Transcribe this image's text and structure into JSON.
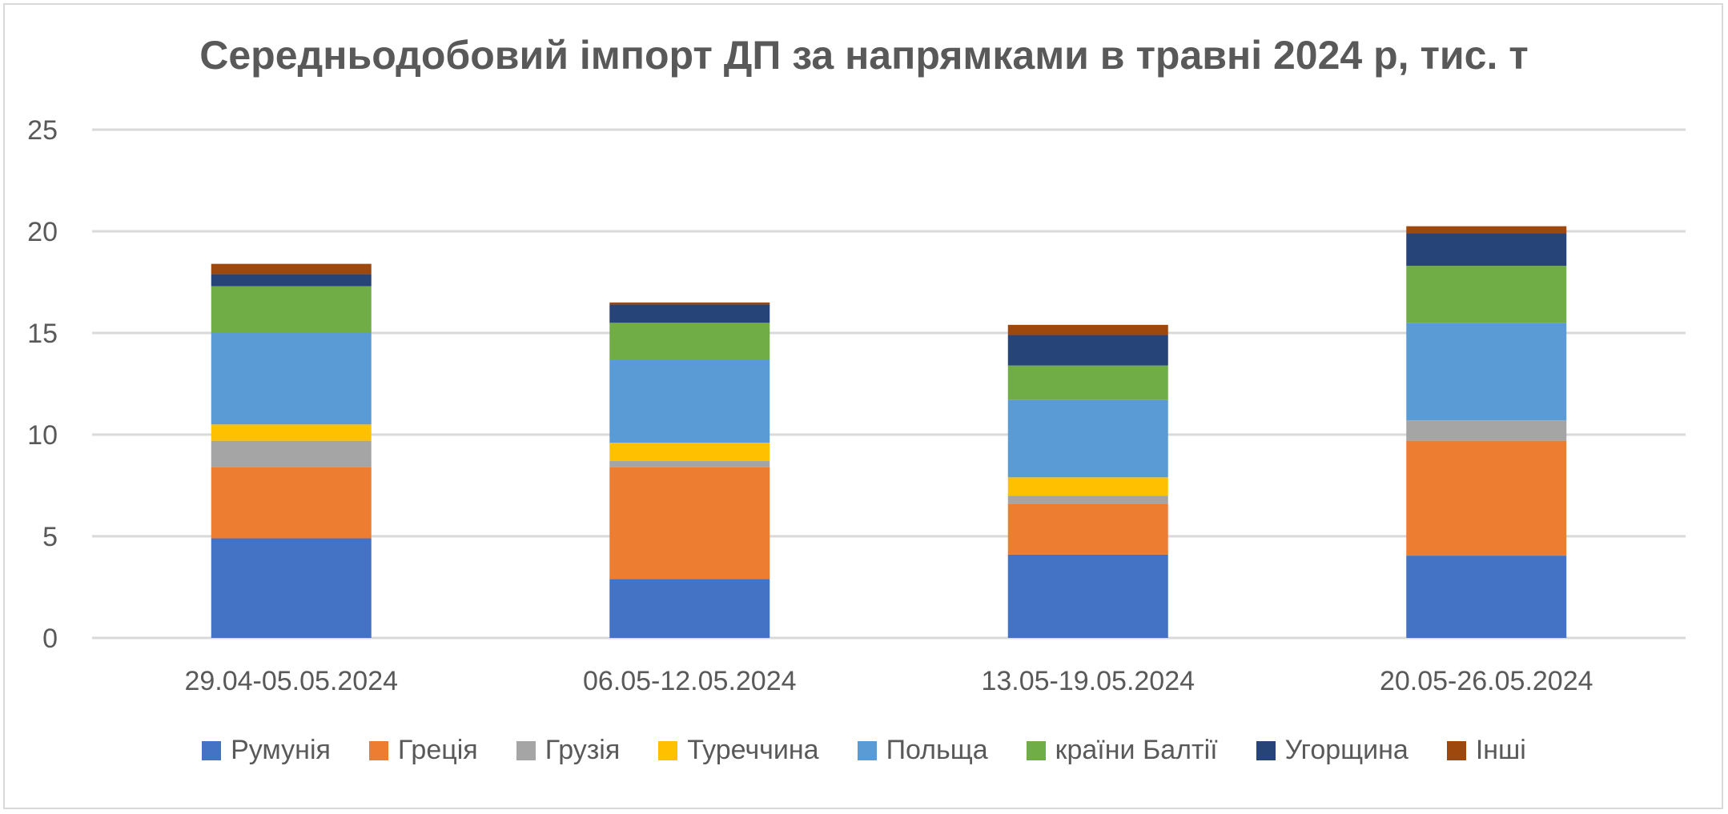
{
  "chart_data": {
    "type": "bar",
    "stacked": true,
    "title": "Середньодобовий імпорт ДП за напрямками в травні 2024 р, тис. т",
    "categories": [
      "29.04-05.05.2024",
      "06.05-12.05.2024",
      "13.05-19.05.2024",
      "20.05-26.05.2024"
    ],
    "ylim": [
      0,
      25
    ],
    "yticks": [
      "0",
      "5",
      "10",
      "15",
      "20",
      "25"
    ],
    "ytick_values": [
      0,
      5,
      10,
      15,
      20,
      25
    ],
    "grid": true,
    "legend_position": "bottom",
    "series": [
      {
        "name": "Румунія",
        "color": "#4472C4",
        "values": [
          4.9,
          2.9,
          4.1,
          4.05
        ]
      },
      {
        "name": "Греція",
        "color": "#ED7D31",
        "values": [
          3.5,
          5.5,
          2.5,
          5.65
        ]
      },
      {
        "name": "Грузія",
        "color": "#A5A5A5",
        "values": [
          1.3,
          0.3,
          0.4,
          1.0
        ]
      },
      {
        "name": "Туреччина",
        "color": "#FFC000",
        "values": [
          0.8,
          0.9,
          0.9,
          0.0
        ]
      },
      {
        "name": "Польща",
        "color": "#5B9BD5",
        "values": [
          4.5,
          4.1,
          3.8,
          4.8
        ]
      },
      {
        "name": "країни Балтії",
        "color": "#70AD47",
        "values": [
          2.3,
          1.8,
          1.7,
          2.8
        ]
      },
      {
        "name": "Угорщина",
        "color": "#264478",
        "values": [
          0.6,
          0.9,
          1.5,
          1.6
        ]
      },
      {
        "name": "Інші",
        "color": "#9E480E",
        "values": [
          0.5,
          0.1,
          0.5,
          0.35
        ]
      }
    ]
  }
}
